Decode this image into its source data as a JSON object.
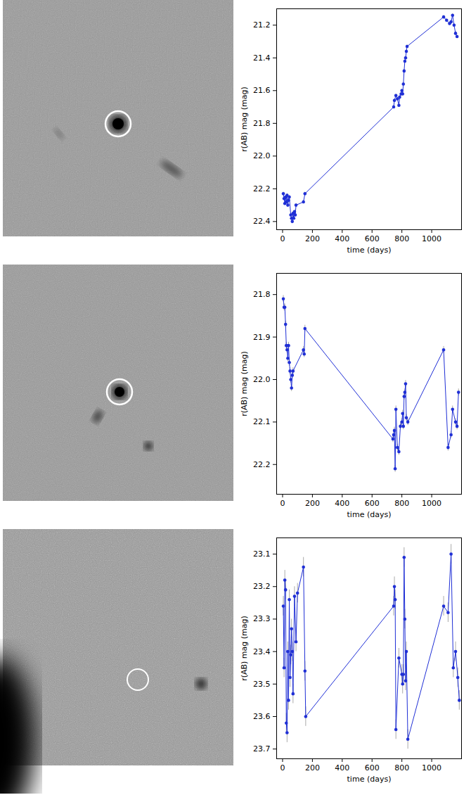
{
  "chart_data": [
    {
      "type": "line",
      "color": "#1f2fd6",
      "marker": "circle",
      "xlabel": "time (days)",
      "ylabel": "r(AB) mag (mag)",
      "xlim": [
        -40,
        1200
      ],
      "ylim": [
        22.45,
        21.1
      ],
      "xticks": [
        0,
        200,
        400,
        600,
        800,
        1000
      ],
      "yticks": [
        21.2,
        21.4,
        21.6,
        21.8,
        {
          "value": 22,
          "label": "22.0"
        },
        22.2,
        22.4
      ],
      "x": [
        5,
        10,
        15,
        20,
        25,
        30,
        35,
        40,
        45,
        55,
        60,
        65,
        70,
        75,
        80,
        85,
        90,
        140,
        150,
        745,
        750,
        760,
        770,
        780,
        785,
        795,
        800,
        805,
        810,
        815,
        820,
        825,
        830,
        835,
        1080,
        1100,
        1120,
        1130,
        1140,
        1150,
        1160,
        1170
      ],
      "values": [
        22.23,
        22.26,
        22.29,
        22.25,
        22.28,
        22.24,
        22.3,
        22.27,
        22.25,
        22.36,
        22.38,
        22.4,
        22.35,
        22.38,
        22.34,
        22.36,
        22.3,
        22.28,
        22.23,
        21.7,
        21.66,
        21.63,
        21.65,
        21.69,
        21.64,
        21.62,
        21.6,
        21.62,
        21.56,
        21.48,
        21.42,
        21.4,
        21.36,
        21.33,
        21.15,
        21.17,
        21.19,
        21.18,
        21.14,
        21.2,
        21.25,
        21.27
      ],
      "errors": [
        0.01,
        0.01,
        0.01,
        0.01,
        0.01,
        0.01,
        0.01,
        0.01,
        0.01,
        0.01,
        0.01,
        0.01,
        0.01,
        0.01,
        0.01,
        0.01,
        0.01,
        0.01,
        0.01,
        0.01,
        0.01,
        0.01,
        0.01,
        0.01,
        0.01,
        0.01,
        0.01,
        0.01,
        0.01,
        0.01,
        0.01,
        0.01,
        0.01,
        0.01,
        0.01,
        0.01,
        0.01,
        0.01,
        0.01,
        0.01,
        0.01,
        0.01
      ]
    },
    {
      "type": "line",
      "color": "#1f2fd6",
      "marker": "circle",
      "xlabel": "time (days)",
      "ylabel": "r(AB) mag (mag)",
      "xlim": [
        -40,
        1200
      ],
      "ylim": [
        22.27,
        21.75
      ],
      "xticks": [
        0,
        200,
        400,
        600,
        800,
        1000
      ],
      "yticks": [
        21.8,
        21.9,
        {
          "value": 22,
          "label": "22.0"
        },
        22.1,
        22.2
      ],
      "x": [
        5,
        10,
        15,
        20,
        25,
        30,
        35,
        40,
        45,
        50,
        55,
        60,
        65,
        70,
        140,
        145,
        150,
        740,
        745,
        750,
        755,
        760,
        770,
        780,
        790,
        800,
        805,
        810,
        815,
        820,
        825,
        830,
        840,
        1080,
        1110,
        1130,
        1140,
        1160,
        1170,
        1180
      ],
      "values": [
        21.81,
        21.83,
        21.83,
        21.87,
        21.92,
        21.93,
        21.95,
        21.92,
        21.96,
        21.98,
        22.0,
        22.02,
        21.99,
        21.98,
        21.93,
        21.94,
        21.88,
        22.14,
        22.13,
        22.12,
        22.21,
        22.07,
        22.16,
        22.17,
        22.11,
        22.1,
        22.08,
        22.11,
        22.04,
        22.03,
        22.01,
        22.09,
        22.1,
        21.93,
        22.16,
        22.13,
        22.07,
        22.1,
        22.11,
        22.03
      ],
      "errors": [
        0.008,
        0.008,
        0.008,
        0.008,
        0.008,
        0.008,
        0.008,
        0.008,
        0.008,
        0.008,
        0.008,
        0.008,
        0.008,
        0.008,
        0.008,
        0.008,
        0.008,
        0.008,
        0.008,
        0.008,
        0.008,
        0.008,
        0.008,
        0.008,
        0.008,
        0.008,
        0.008,
        0.008,
        0.008,
        0.008,
        0.008,
        0.008,
        0.008,
        0.008,
        0.008,
        0.008,
        0.008,
        0.008,
        0.008,
        0.008
      ]
    },
    {
      "type": "line",
      "color": "#1f2fd6",
      "marker": "circle",
      "xlabel": "time (days)",
      "ylabel": "r(AB) mag (mag)",
      "xlim": [
        -40,
        1200
      ],
      "ylim": [
        23.73,
        23.05
      ],
      "xticks": [
        0,
        200,
        400,
        600,
        800,
        1000
      ],
      "yticks": [
        23.1,
        23.2,
        23.3,
        23.4,
        23.5,
        23.6,
        23.7
      ],
      "x": [
        5,
        10,
        15,
        20,
        25,
        30,
        35,
        40,
        45,
        50,
        55,
        60,
        65,
        70,
        80,
        90,
        100,
        140,
        150,
        155,
        745,
        750,
        755,
        760,
        780,
        800,
        805,
        810,
        815,
        820,
        825,
        830,
        840,
        1080,
        1110,
        1130,
        1145,
        1160,
        1175,
        1185
      ],
      "values": [
        23.26,
        23.45,
        23.18,
        23.21,
        23.62,
        23.65,
        23.4,
        23.55,
        23.24,
        23.48,
        23.41,
        23.33,
        23.4,
        23.53,
        23.23,
        23.37,
        23.22,
        23.14,
        23.46,
        23.6,
        23.26,
        23.2,
        23.24,
        23.64,
        23.42,
        23.47,
        23.5,
        23.47,
        23.11,
        23.3,
        23.49,
        23.4,
        23.67,
        23.26,
        23.28,
        23.1,
        23.45,
        23.4,
        23.48,
        23.55
      ],
      "errors": [
        0.03,
        0.03,
        0.03,
        0.03,
        0.03,
        0.03,
        0.03,
        0.03,
        0.03,
        0.03,
        0.03,
        0.03,
        0.03,
        0.03,
        0.03,
        0.03,
        0.03,
        0.03,
        0.03,
        0.03,
        0.03,
        0.03,
        0.03,
        0.03,
        0.03,
        0.03,
        0.03,
        0.03,
        0.03,
        0.03,
        0.03,
        0.03,
        0.03,
        0.03,
        0.03,
        0.03,
        0.03,
        0.03,
        0.03,
        0.03
      ]
    }
  ]
}
